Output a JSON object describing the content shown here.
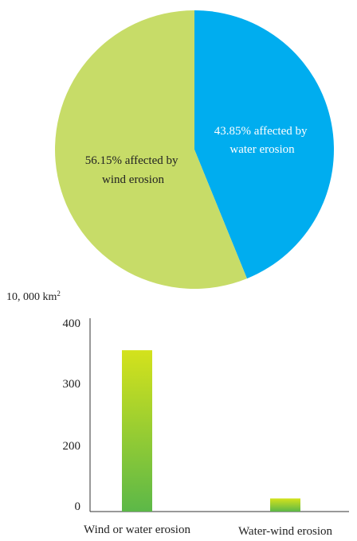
{
  "chart_data": [
    {
      "type": "pie",
      "slices": [
        {
          "label_line1": "43.85% affected by",
          "label_line2": "water erosion",
          "value": 43.85,
          "color": "#00adef",
          "label_color": "#ffffff"
        },
        {
          "label_line1": "56.15% affected by",
          "label_line2": "wind erosion",
          "value": 56.15,
          "color": "#c7dc68",
          "label_color": "#222222"
        }
      ]
    },
    {
      "type": "bar",
      "ylabel": "10, 000 km",
      "ylabel_superscript": "2",
      "ylim": [
        0,
        400
      ],
      "yticks": [
        "0",
        "200",
        "300",
        "400"
      ],
      "ytick_values": [
        0,
        200,
        300,
        400
      ],
      "categories": [
        "Wind or water erosion",
        "Water-wind erosion"
      ],
      "values": [
        355,
        25
      ],
      "bar_color_top": "#d4e21c",
      "bar_color_bottom": "#5cb848",
      "grid": false
    }
  ]
}
